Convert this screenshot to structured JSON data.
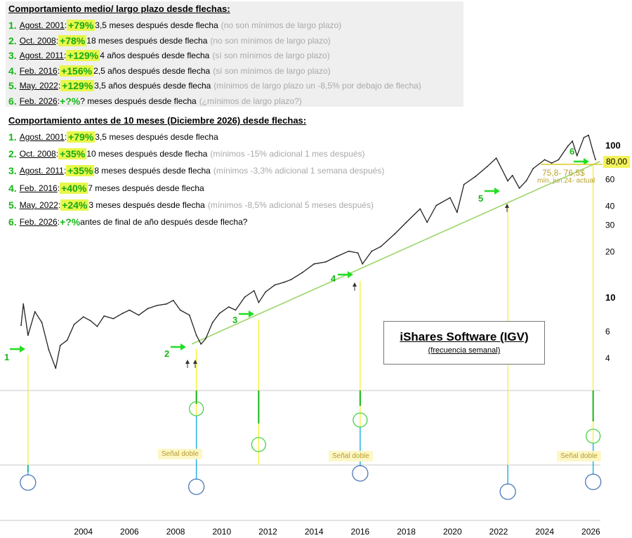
{
  "box1": {
    "title": "Comportamiento medio/ largo plazo desde flechas:",
    "rows": [
      {
        "num": "1.",
        "date": "Agost. 2001",
        "sep": ":",
        "gain": "+79%",
        "hl": true,
        "text": " 3,5 meses después desde flecha",
        "note": "(no son mínimos de largo plazo)"
      },
      {
        "num": "2.",
        "date": "Oct. 2008",
        "sep": ":",
        "gain": "+78%",
        "hl": true,
        "text": " 18 meses después desde flecha",
        "note": "(no son mínimos de largo plazo)"
      },
      {
        "num": "3.",
        "date": "Agost. 2011",
        "sep": ":",
        "gain": "+129%",
        "hl": true,
        "text": " 4 años después desde flecha",
        "note": "(sí son mínimos de largo plazo)"
      },
      {
        "num": "4.",
        "date": "Feb. 2016",
        "sep": ":",
        "gain": "+156%",
        "hl": true,
        "text": " 2,5 años después desde flecha",
        "note": "(sí son mínimos de largo plazo)"
      },
      {
        "num": "5.",
        "date": "May. 2022",
        "sep": ":",
        "gain": "+129%",
        "hl": true,
        "text": " 3,5 años después desde flecha",
        "note": "(mínimos de largo plazo un -8,5% por debajo de flecha)"
      },
      {
        "num": "6.",
        "date": "Feb. 2026",
        "sep": ":",
        "gain": "+?%",
        "hl": false,
        "text": " ? meses después desde flecha",
        "note": "(¿mínimos de largo plazo?)"
      }
    ]
  },
  "box2": {
    "title": "Comportamiento antes de 10 meses (Diciembre 2026) desde flechas:",
    "rows": [
      {
        "num": "1.",
        "date": "Agost. 2001",
        "sep": ":",
        "gain": "+79%",
        "hl": true,
        "text": " 3,5 meses después desde flecha",
        "note": ""
      },
      {
        "num": "2.",
        "date": "Oct. 2008",
        "sep": ":",
        "gain": "+35%",
        "hl": true,
        "text": " 10 meses después desde flecha",
        "note": "(mínimos -15% adicional 1 mes después)"
      },
      {
        "num": "3.",
        "date": "Agost. 2011",
        "sep": ":",
        "gain": "+35%",
        "hl": true,
        "text": " 8 meses después desde flecha",
        "note": "(mínimos -3,3% adicional 1 semana después)"
      },
      {
        "num": "4.",
        "date": "Feb. 2016",
        "sep": ":",
        "gain": "+40%",
        "hl": true,
        "text": " 7 meses después desde flecha",
        "note": ""
      },
      {
        "num": "5.",
        "date": "May. 2022",
        "sep": ":",
        "gain": "+24%",
        "hl": true,
        "text": " 3 meses después desde flecha",
        "note": "(mínimos -8,5% adicional 5 meses después)"
      },
      {
        "num": "6.",
        "date": "Feb. 2026",
        "sep": ":",
        "gain": "+?%",
        "hl": false,
        "text": " antes de final de año después desde flecha?",
        "note": ""
      }
    ]
  },
  "logo": {
    "title": "iShares Software (IGV)",
    "subtitle": "(frecuencia semanal)"
  },
  "price_tag": "80,00",
  "range_label": {
    "line1": "75,8- 76,5$",
    "line2": "mín. jun.24- actual"
  },
  "signal_label": "Señal doble",
  "arrow_labels": [
    "1",
    "2",
    "3",
    "4",
    "5",
    "6"
  ],
  "colors": {
    "green": "#16b616",
    "yellow": "#f1f126",
    "light_green": "#9bd66a",
    "cyan": "#27b4e6",
    "circle_blue": "#4a78b8",
    "highlight": "#e8f74a"
  },
  "chart_data": {
    "type": "line",
    "y_scale": "log",
    "y_ticks": [
      4,
      6,
      10,
      20,
      30,
      40,
      60,
      100
    ],
    "x_ticks": [
      "2004",
      "2006",
      "2008",
      "2010",
      "2012",
      "2014",
      "2016",
      "2018",
      "2020",
      "2022",
      "2024",
      "2026"
    ],
    "x_range": [
      2001.3,
      2026.6
    ],
    "ylim": [
      3.2,
      140
    ],
    "series": [
      {
        "points": [
          [
            2001.3,
            6.5
          ],
          [
            2001.4,
            9.0
          ],
          [
            2001.6,
            5.6
          ],
          [
            2001.9,
            8.0
          ],
          [
            2002.2,
            6.8
          ],
          [
            2002.5,
            4.5
          ],
          [
            2002.8,
            3.4
          ],
          [
            2003.0,
            4.8
          ],
          [
            2003.3,
            5.2
          ],
          [
            2003.6,
            6.6
          ],
          [
            2004.0,
            7.4
          ],
          [
            2004.3,
            7.0
          ],
          [
            2004.6,
            6.4
          ],
          [
            2004.9,
            7.5
          ],
          [
            2005.3,
            7.2
          ],
          [
            2005.7,
            7.8
          ],
          [
            2006.0,
            8.2
          ],
          [
            2006.4,
            7.6
          ],
          [
            2006.8,
            8.4
          ],
          [
            2007.2,
            8.8
          ],
          [
            2007.6,
            9.0
          ],
          [
            2007.9,
            9.5
          ],
          [
            2008.2,
            8.2
          ],
          [
            2008.6,
            7.6
          ],
          [
            2008.9,
            5.6
          ],
          [
            2009.1,
            4.9
          ],
          [
            2009.3,
            5.3
          ],
          [
            2009.6,
            6.8
          ],
          [
            2009.9,
            7.8
          ],
          [
            2010.3,
            8.6
          ],
          [
            2010.6,
            8.2
          ],
          [
            2011.0,
            10.0
          ],
          [
            2011.4,
            11.0
          ],
          [
            2011.6,
            9.2
          ],
          [
            2011.9,
            10.8
          ],
          [
            2012.3,
            12.0
          ],
          [
            2012.7,
            12.5
          ],
          [
            2013.0,
            13.0
          ],
          [
            2013.5,
            14.5
          ],
          [
            2014.0,
            16.5
          ],
          [
            2014.5,
            17.0
          ],
          [
            2015.0,
            18.5
          ],
          [
            2015.5,
            20.0
          ],
          [
            2015.9,
            19.5
          ],
          [
            2016.1,
            16.5
          ],
          [
            2016.5,
            20.0
          ],
          [
            2016.9,
            21.5
          ],
          [
            2017.5,
            26.0
          ],
          [
            2018.0,
            31.0
          ],
          [
            2018.6,
            38.0
          ],
          [
            2018.9,
            31.0
          ],
          [
            2019.3,
            40.0
          ],
          [
            2019.9,
            45.0
          ],
          [
            2020.2,
            36.0
          ],
          [
            2020.5,
            55.0
          ],
          [
            2021.0,
            62.0
          ],
          [
            2021.5,
            72.0
          ],
          [
            2021.9,
            82.0
          ],
          [
            2022.4,
            58.0
          ],
          [
            2022.6,
            63.0
          ],
          [
            2022.9,
            52.0
          ],
          [
            2023.2,
            58.0
          ],
          [
            2023.5,
            70.0
          ],
          [
            2024.0,
            80.0
          ],
          [
            2024.3,
            76.0
          ],
          [
            2024.6,
            80.0
          ],
          [
            2025.0,
            98.0
          ],
          [
            2025.2,
            106.0
          ],
          [
            2025.4,
            85.0
          ],
          [
            2025.7,
            112.0
          ],
          [
            2025.9,
            116.0
          ],
          [
            2026.1,
            90.0
          ],
          [
            2026.2,
            80.0
          ]
        ]
      }
    ],
    "trendline": [
      [
        2008.7,
        4.9
      ],
      [
        2026.4,
        78.0
      ]
    ],
    "events": [
      {
        "label": "1",
        "x": 2001.6
      },
      {
        "label": "2",
        "x": 2008.9
      },
      {
        "label": "3",
        "x": 2011.6
      },
      {
        "label": "4",
        "x": 2016.0
      },
      {
        "label": "5",
        "x": 2022.4
      },
      {
        "label": "6",
        "x": 2026.1
      }
    ]
  }
}
